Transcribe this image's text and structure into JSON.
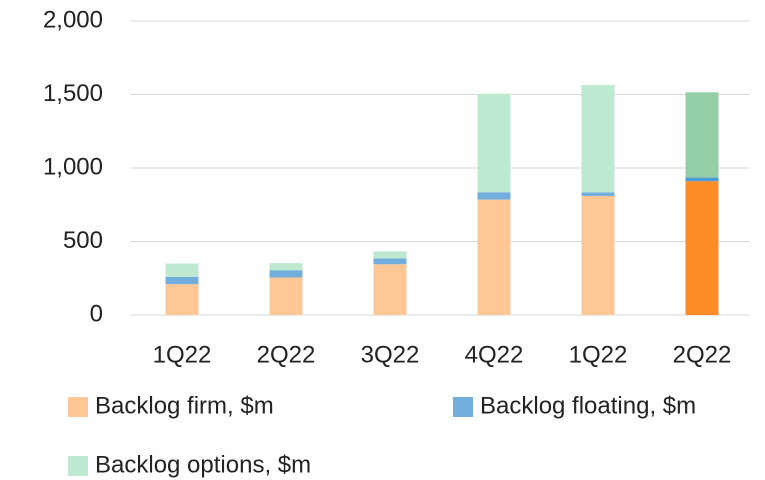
{
  "chart_data": {
    "type": "stacked_bar",
    "categories": [
      "1Q22",
      "2Q22",
      "3Q22",
      "4Q22",
      "1Q22",
      "2Q22"
    ],
    "series": [
      {
        "name": "Backlog firm, $m",
        "color": "#ffc696",
        "colors": [
          "#ffc696",
          "#ffc696",
          "#ffc696",
          "#ffc696",
          "#ffc696",
          "#ff8c26"
        ],
        "values": [
          210,
          255,
          345,
          785,
          810,
          910
        ]
      },
      {
        "name": "Backlog floating, $m",
        "color": "#71aedc",
        "colors": [
          "#71aedc",
          "#71aedc",
          "#71aedc",
          "#71aedc",
          "#71aedc",
          "#4d9cd6"
        ],
        "values": [
          50,
          50,
          40,
          50,
          25,
          25
        ]
      },
      {
        "name": "Backlog options, $m",
        "color": "#bde9d0",
        "colors": [
          "#bde9d0",
          "#bde9d0",
          "#bde9d0",
          "#bde9d0",
          "#bde9d0",
          "#94cfa8"
        ],
        "values": [
          90,
          48,
          48,
          670,
          730,
          580
        ]
      }
    ],
    "ylim": [
      0,
      2000
    ],
    "yticks": [
      0,
      500,
      {
        "value": 1000,
        "label": "1,000"
      },
      {
        "value": 1500,
        "label": "1,500"
      },
      {
        "value": 2000,
        "label": "2,000"
      }
    ],
    "grid": true
  }
}
